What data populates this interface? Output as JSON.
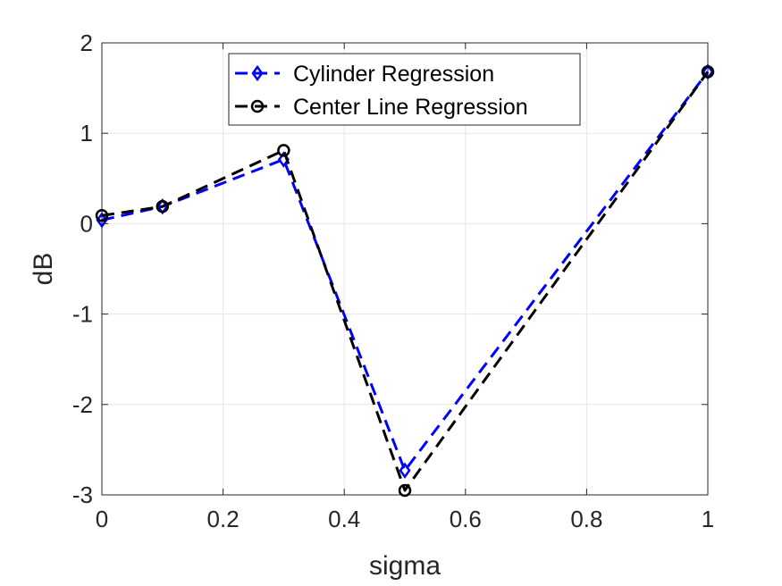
{
  "chart_data": {
    "type": "line",
    "title": "",
    "xlabel": "sigma",
    "ylabel": "dB",
    "xlim": [
      0,
      1
    ],
    "ylim": [
      -3,
      2
    ],
    "xticks": [
      0,
      0.2,
      0.4,
      0.6,
      0.8,
      1
    ],
    "xtick_labels": [
      "0",
      "0.2",
      "0.4",
      "0.6",
      "0.8",
      "1"
    ],
    "yticks": [
      -3,
      -2,
      -1,
      0,
      1,
      2
    ],
    "ytick_labels": [
      "-3",
      "-2",
      "-1",
      "0",
      "1",
      "2"
    ],
    "grid": true,
    "legend_position": "top-center",
    "series": [
      {
        "name": "Cylinder Regression",
        "color": "#0000ff",
        "marker": "diamond",
        "line_style": "dashed",
        "x": [
          0,
          0.1,
          0.3,
          0.5,
          1
        ],
        "y": [
          0.04,
          0.19,
          0.71,
          -2.73,
          1.68
        ]
      },
      {
        "name": "Center Line Regression",
        "color": "#000000",
        "marker": "circle",
        "line_style": "dashed",
        "x": [
          0,
          0.1,
          0.3,
          0.5,
          1
        ],
        "y": [
          0.09,
          0.19,
          0.81,
          -2.95,
          1.68
        ]
      }
    ]
  }
}
